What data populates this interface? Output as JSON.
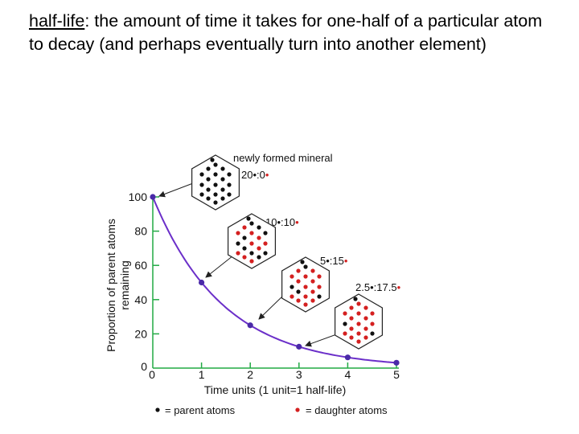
{
  "heading": {
    "term": "half-life",
    "definition": ": the amount of time it takes for one-half of a particular atom to decay (and perhaps eventually turn into another element)"
  },
  "chart_data": {
    "type": "line",
    "xlabel": "Time units (1 unit=1 half-life)",
    "ylabel_line1": "Proportion of parent atoms",
    "ylabel_line2": "remaining",
    "x_ticks": [
      "0",
      "1",
      "2",
      "3",
      "4",
      "5"
    ],
    "y_ticks": [
      "0",
      "20",
      "40",
      "60",
      "80",
      "100"
    ],
    "xlim": [
      0,
      5
    ],
    "ylim": [
      0,
      100
    ],
    "x": [
      0,
      1,
      2,
      3,
      4,
      5
    ],
    "y": [
      100,
      50,
      25,
      12.5,
      6.25,
      3.125
    ],
    "curve_color": "#6b2fc9",
    "marker_color": "#4a2aa8"
  },
  "annotations": [
    {
      "title": "newly formed mineral",
      "parent": "20",
      "sep": ":",
      "daughter": "0"
    },
    {
      "parent": "10",
      "sep": ":",
      "daughter": "10"
    },
    {
      "parent": "5",
      "sep": ":",
      "daughter": "15"
    },
    {
      "parent": "2.5",
      "sep": ":",
      "daughter": "17.5"
    }
  ],
  "legend": {
    "parent": "= parent atoms",
    "daughter": "= daughter atoms",
    "parent_color": "#111111",
    "daughter_color": "#d42020"
  }
}
